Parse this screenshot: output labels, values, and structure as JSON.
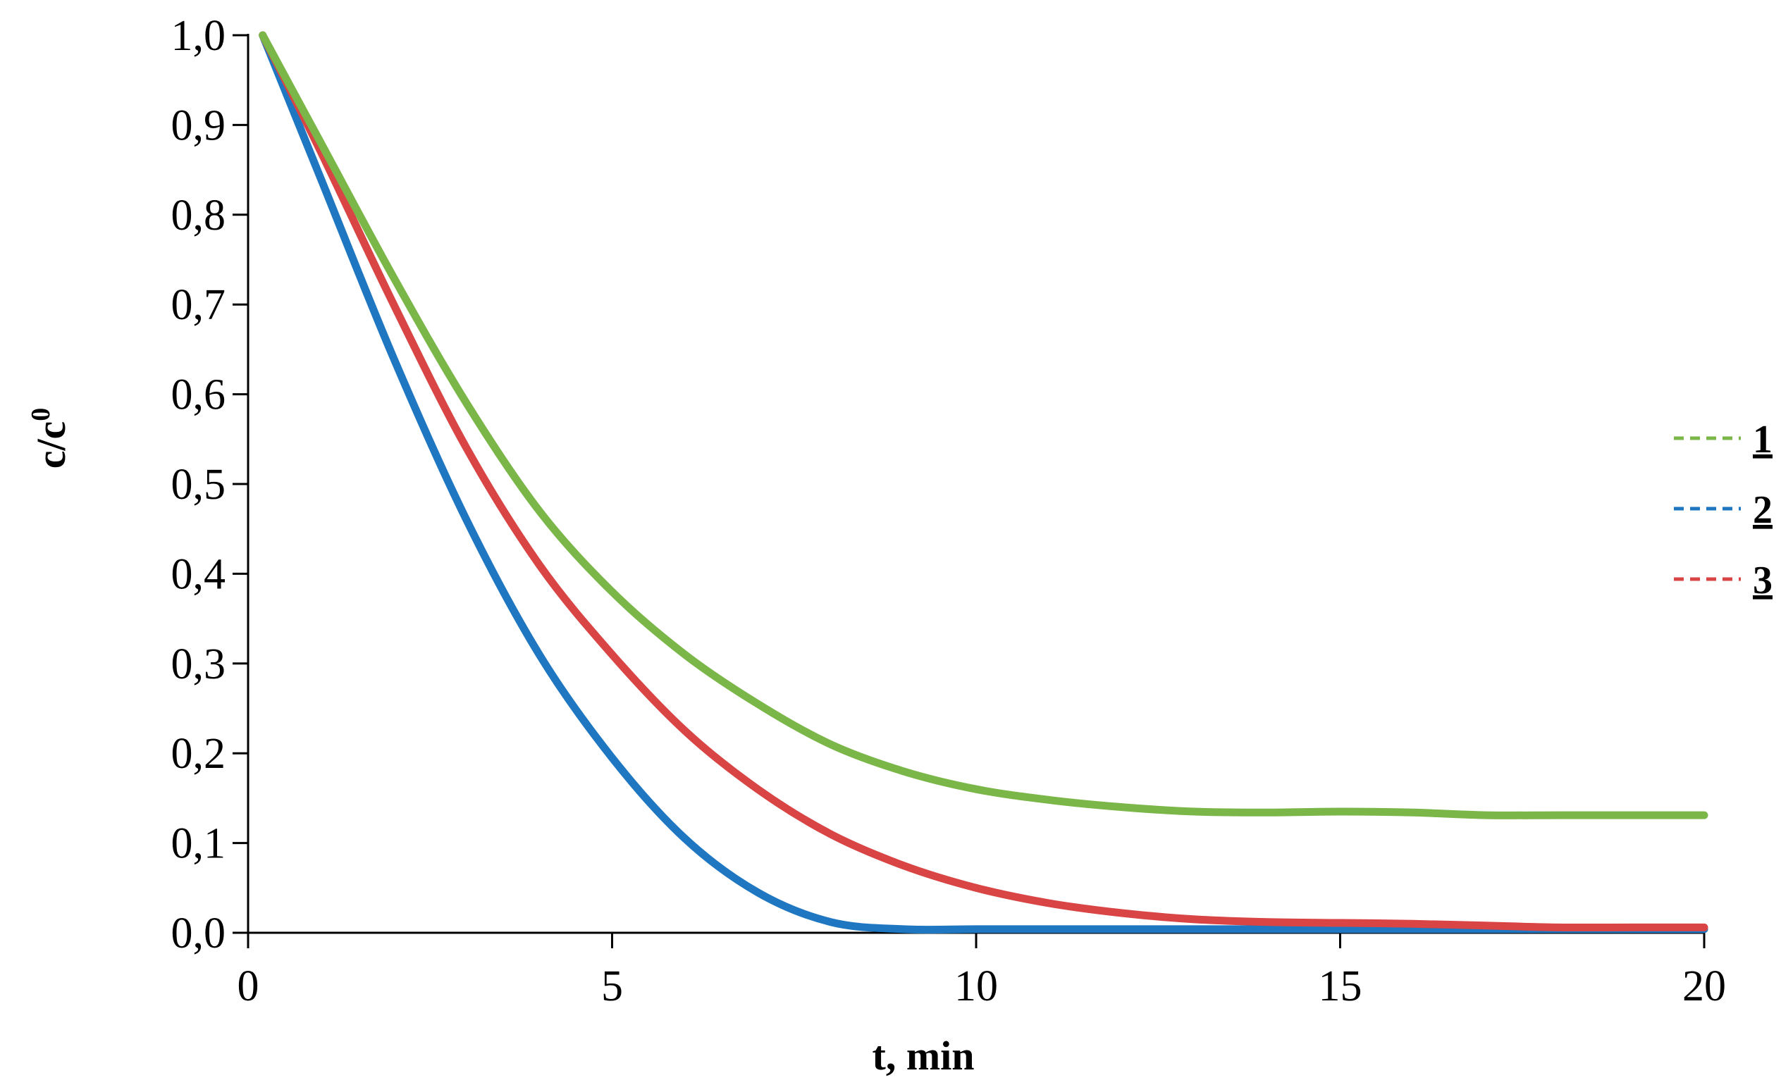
{
  "chart_data": {
    "type": "line",
    "xlabel": "t, min",
    "ylabel": "c/c",
    "ylabel_superscript": "0",
    "xlim": [
      0,
      20
    ],
    "ylim": [
      0,
      1
    ],
    "x_ticks": [
      "0",
      "5",
      "10",
      "15",
      "20"
    ],
    "y_ticks": [
      "0,0",
      "0,1",
      "0,2",
      "0,3",
      "0,4",
      "0,5",
      "0,6",
      "0,7",
      "0,8",
      "0,9",
      "1,0"
    ],
    "legend_position": "right",
    "series": [
      {
        "name": "1",
        "color": "#7ab648",
        "x": [
          0.2,
          1,
          2,
          3,
          4,
          5,
          6,
          7,
          8,
          9,
          10,
          11,
          12,
          13,
          14,
          15,
          16,
          17,
          18,
          19,
          20
        ],
        "y": [
          1.0,
          0.88,
          0.73,
          0.59,
          0.47,
          0.38,
          0.31,
          0.255,
          0.21,
          0.18,
          0.16,
          0.148,
          0.14,
          0.135,
          0.134,
          0.135,
          0.134,
          0.131,
          0.131,
          0.131,
          0.131
        ]
      },
      {
        "name": "2",
        "color": "#1f77c2",
        "x": [
          0.2,
          1,
          2,
          3,
          4,
          5,
          6,
          7,
          8,
          9,
          10,
          11,
          12,
          13,
          14,
          15,
          16,
          17,
          18,
          19,
          20
        ],
        "y": [
          1.0,
          0.84,
          0.64,
          0.46,
          0.31,
          0.195,
          0.105,
          0.045,
          0.012,
          0.004,
          0.004,
          0.004,
          0.004,
          0.004,
          0.004,
          0.004,
          0.004,
          0.004,
          0.004,
          0.004,
          0.004
        ]
      },
      {
        "name": "3",
        "color": "#d94444",
        "x": [
          0.2,
          1,
          2,
          3,
          4,
          5,
          6,
          7,
          8,
          9,
          10,
          11,
          12,
          13,
          14,
          15,
          16,
          17,
          18,
          19,
          20
        ],
        "y": [
          1.0,
          0.87,
          0.7,
          0.54,
          0.41,
          0.31,
          0.225,
          0.16,
          0.11,
          0.075,
          0.05,
          0.033,
          0.022,
          0.015,
          0.012,
          0.011,
          0.01,
          0.008,
          0.006,
          0.006,
          0.006
        ]
      }
    ]
  }
}
